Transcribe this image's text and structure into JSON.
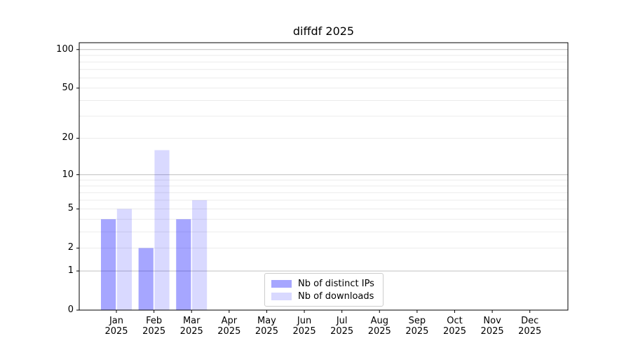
{
  "title": "diffdf 2025",
  "chart_data": {
    "type": "bar",
    "title": "diffdf 2025",
    "categories": [
      "Jan",
      "Feb",
      "Mar",
      "Apr",
      "May",
      "Jun",
      "Jul",
      "Aug",
      "Sep",
      "Oct",
      "Nov",
      "Dec"
    ],
    "x_tick_year": "2025",
    "series": [
      {
        "name": "Nb of distinct IPs",
        "color": "#a6a6ff",
        "fill": "rgba(0,0,255,0.35)",
        "values": [
          4,
          2,
          4,
          0,
          0,
          0,
          0,
          0,
          0,
          0,
          0,
          0
        ]
      },
      {
        "name": "Nb of downloads",
        "color": "#d9d9ff",
        "fill": "rgba(0,0,255,0.15)",
        "values": [
          5,
          16,
          6,
          0,
          0,
          0,
          0,
          0,
          0,
          0,
          0,
          0
        ]
      }
    ],
    "yscale": "log10(1+v)",
    "ylim": [
      0,
      113
    ],
    "y_ticks": [
      0,
      1,
      2,
      5,
      10,
      20,
      50,
      100
    ],
    "y_gridlines_major": [
      1,
      10,
      100
    ],
    "y_gridlines_minor": [
      2,
      3,
      4,
      5,
      6,
      7,
      8,
      9,
      20,
      30,
      40,
      50,
      60,
      70,
      80,
      90
    ],
    "grid": true,
    "legend_position": "lower center",
    "xlabel": "",
    "ylabel": ""
  },
  "colors": {
    "background": "#ffffff",
    "axes_edge": "#000000",
    "grid_major": "#c0c0c0",
    "grid_minor": "#ebebeb",
    "tick": "#000000",
    "text": "#000000",
    "legend_border": "#cccccc"
  }
}
